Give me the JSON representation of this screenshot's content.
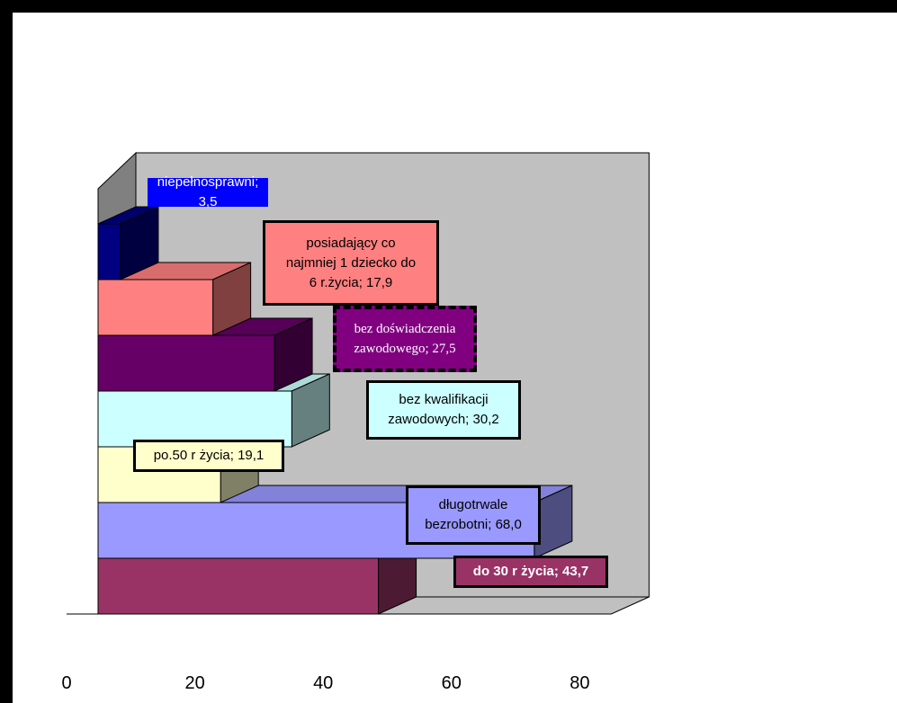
{
  "chart_data": {
    "type": "bar",
    "orientation": "horizontal",
    "three_d": true,
    "categories": [
      "do 30 r życia",
      "długotrwale bezrobotni",
      "po.50 r życia",
      "bez kwalifikacji zawodowych",
      "bez doświadczenia zawodowego",
      "posiadający co najmniej 1 dziecko do 6 r.życia",
      "niepełnosprawni"
    ],
    "values": [
      43.7,
      68.0,
      19.1,
      30.2,
      27.5,
      17.9,
      3.5
    ],
    "data_labels": [
      "do 30 r życia; 43,7",
      "długotrwale bezrobotni; 68,0",
      "po.50 r życia; 19,1",
      "bez kwalifikacji zawodowych; 30,2",
      "bez doświadczenia zawodowego; 27,5",
      "posiadający co najmniej 1 dziecko do 6 r.życia; 17,9",
      "niepełnosprawni; 3,5"
    ],
    "colors": [
      "#993366",
      "#9999FF",
      "#FFFFCC",
      "#CCFFFF",
      "#660066",
      "#FF8080",
      "#000080"
    ],
    "xlim": [
      0,
      80
    ],
    "xticks": [
      "0",
      "20",
      "40",
      "60",
      "80"
    ],
    "grid": false,
    "legend": "none"
  }
}
